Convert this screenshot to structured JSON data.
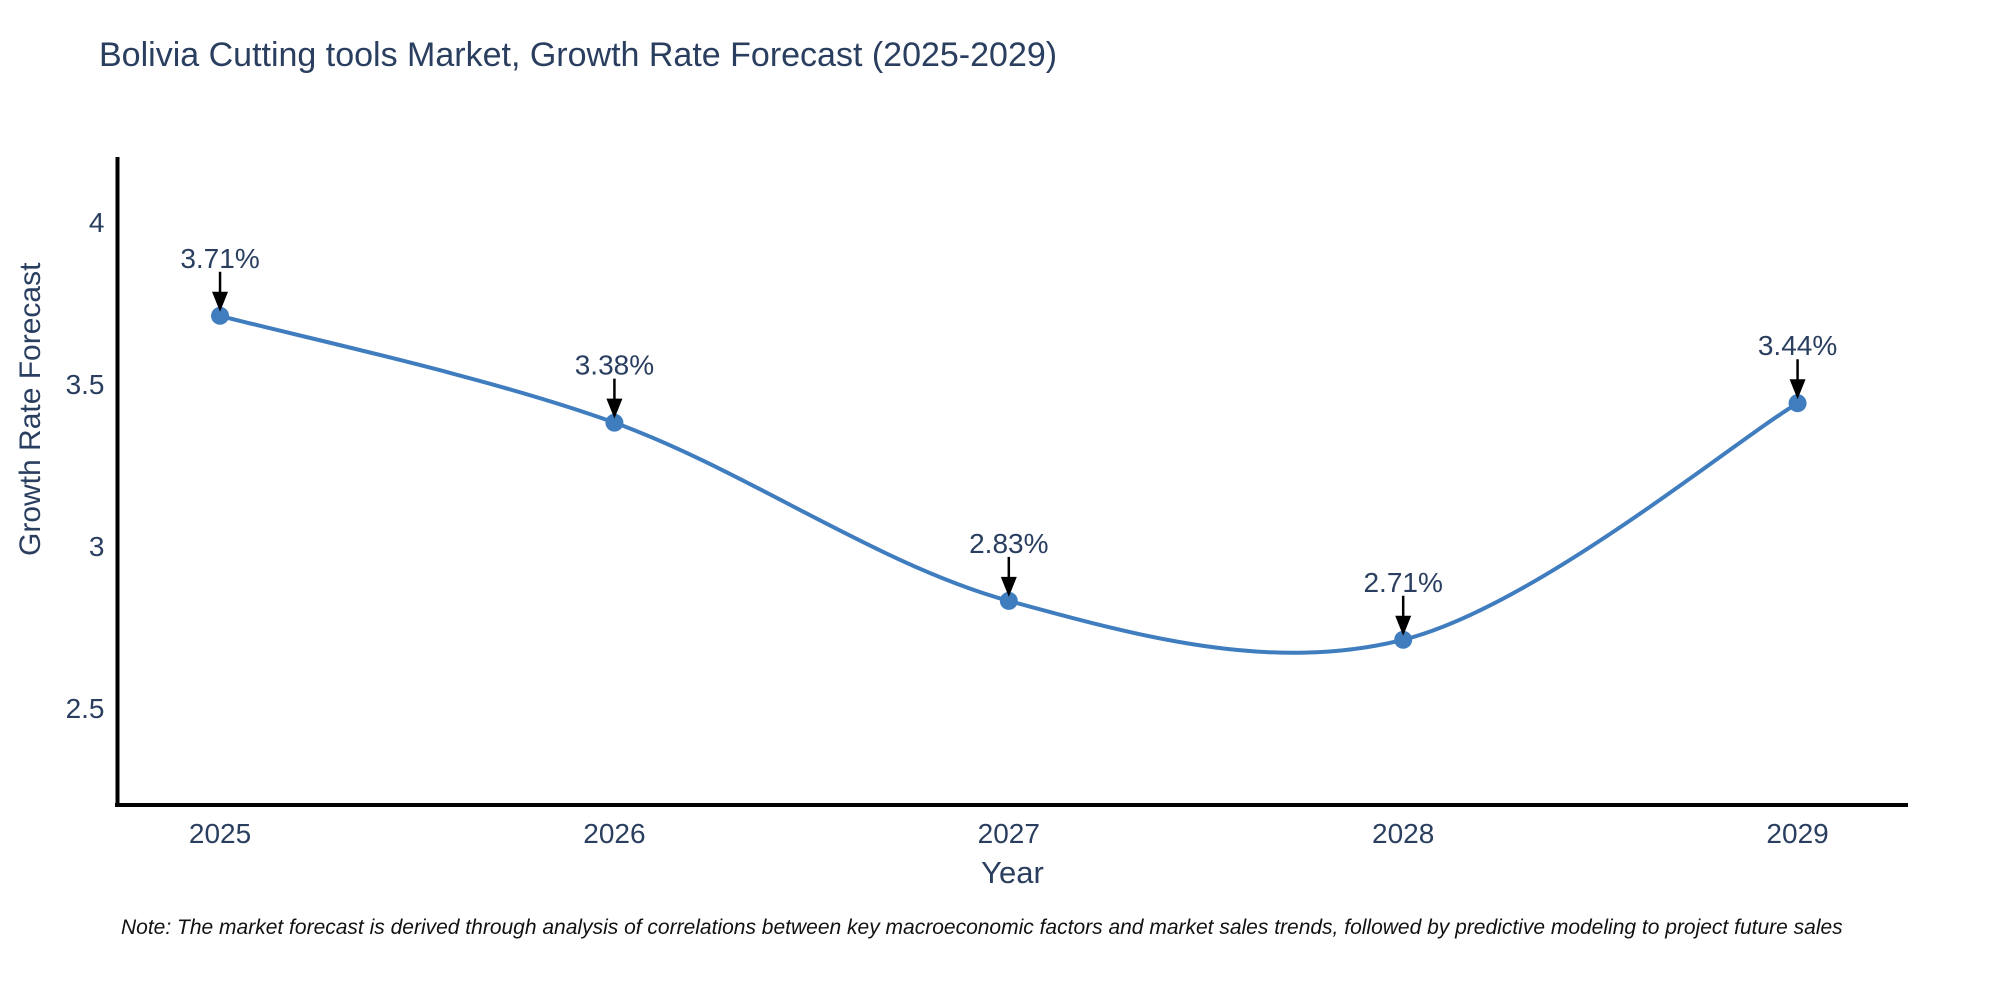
{
  "note": "Note: The market forecast is derived through analysis of correlations between key macroeconomic factors and market sales trends, followed by predictive modeling to project future sales",
  "chart_data": {
    "type": "line",
    "title": "Bolivia Cutting tools Market, Growth Rate Forecast (2025-2029)",
    "xlabel": "Year",
    "ylabel": "Growth Rate Forecast",
    "x": [
      2025,
      2026,
      2027,
      2028,
      2029
    ],
    "values": [
      3.71,
      3.38,
      2.83,
      2.71,
      3.44
    ],
    "labels": [
      "3.71%",
      "3.38%",
      "2.83%",
      "2.71%",
      "3.44%"
    ],
    "xticks": [
      2025,
      2026,
      2027,
      2028,
      2029
    ],
    "yticks": [
      2.5,
      3,
      3.5,
      4
    ],
    "xlim": [
      2024.74,
      2029.28
    ],
    "ylim": [
      2.2,
      4.2
    ],
    "grid": false,
    "legend": "none",
    "line_shape": "spline",
    "line_color": "#3f7dbf",
    "marker_color": "#3f7dbf",
    "arrow_color": "#000000",
    "axis_color": "#000000",
    "text_color": "#2a3f5f"
  }
}
